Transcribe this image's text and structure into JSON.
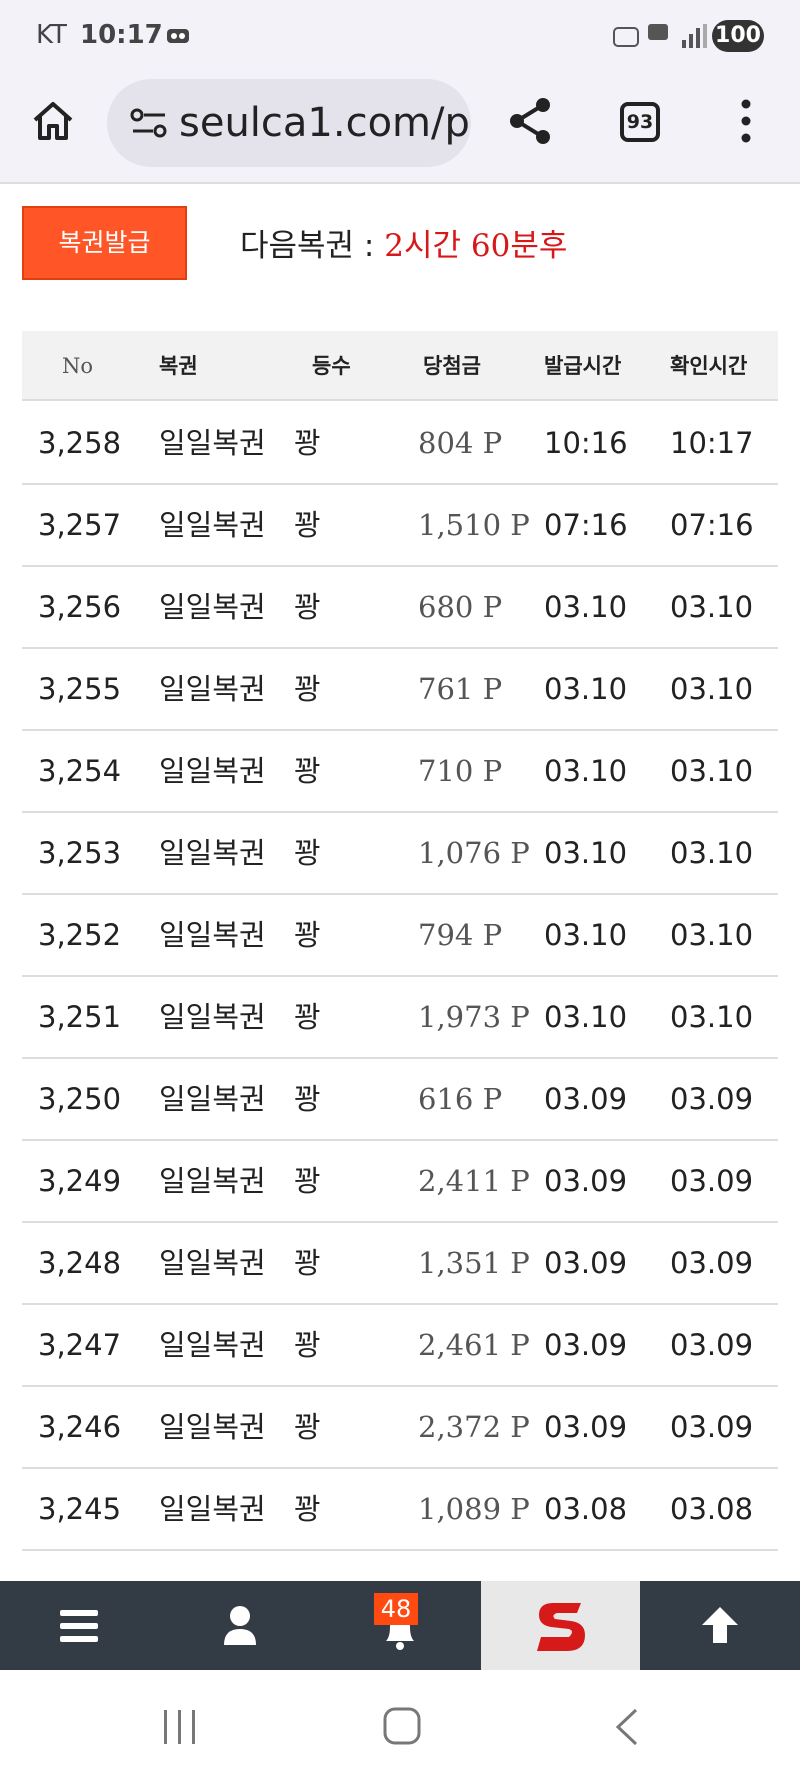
{
  "status_bar": {
    "carrier": "KT",
    "time": "10:17",
    "battery": "100"
  },
  "browser": {
    "url": "seulca1.com/p",
    "tab_count": "93"
  },
  "toolbar": {
    "button": "복권발급",
    "next_label": "다음복권 :",
    "next_value": "2시간 60분후"
  },
  "table": {
    "headers": [
      "No",
      "복권",
      "등수",
      "당첨금",
      "발급시간",
      "확인시간"
    ],
    "rows": [
      [
        "3,258",
        "일일복권",
        "꽝",
        "804 P",
        "10:16",
        "10:17"
      ],
      [
        "3,257",
        "일일복권",
        "꽝",
        "1,510 P",
        "07:16",
        "07:16"
      ],
      [
        "3,256",
        "일일복권",
        "꽝",
        "680 P",
        "03.10",
        "03.10"
      ],
      [
        "3,255",
        "일일복권",
        "꽝",
        "761 P",
        "03.10",
        "03.10"
      ],
      [
        "3,254",
        "일일복권",
        "꽝",
        "710 P",
        "03.10",
        "03.10"
      ],
      [
        "3,253",
        "일일복권",
        "꽝",
        "1,076 P",
        "03.10",
        "03.10"
      ],
      [
        "3,252",
        "일일복권",
        "꽝",
        "794 P",
        "03.10",
        "03.10"
      ],
      [
        "3,251",
        "일일복권",
        "꽝",
        "1,973 P",
        "03.10",
        "03.10"
      ],
      [
        "3,250",
        "일일복권",
        "꽝",
        "616 P",
        "03.09",
        "03.09"
      ],
      [
        "3,249",
        "일일복권",
        "꽝",
        "2,411 P",
        "03.09",
        "03.09"
      ],
      [
        "3,248",
        "일일복권",
        "꽝",
        "1,351 P",
        "03.09",
        "03.09"
      ],
      [
        "3,247",
        "일일복권",
        "꽝",
        "2,461 P",
        "03.09",
        "03.09"
      ],
      [
        "3,246",
        "일일복권",
        "꽝",
        "2,372 P",
        "03.09",
        "03.09"
      ],
      [
        "3,245",
        "일일복권",
        "꽝",
        "1,089 P",
        "03.08",
        "03.08"
      ]
    ]
  },
  "bottom_nav": {
    "badge": "48"
  }
}
